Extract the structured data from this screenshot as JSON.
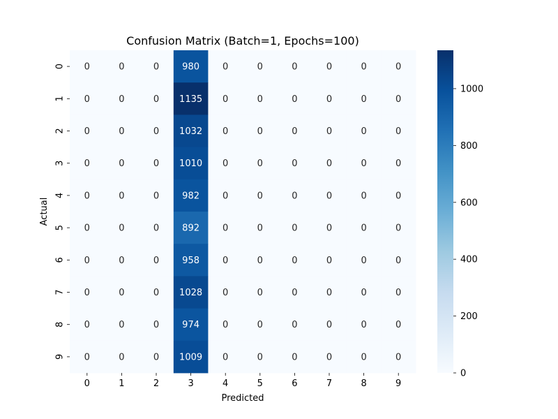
{
  "chart_data": {
    "type": "heatmap",
    "title": "Confusion Matrix (Batch=1, Epochs=100)",
    "xlabel": "Predicted",
    "ylabel": "Actual",
    "x_categories": [
      "0",
      "1",
      "2",
      "3",
      "4",
      "5",
      "6",
      "7",
      "8",
      "9"
    ],
    "y_categories": [
      "0",
      "1",
      "2",
      "3",
      "4",
      "5",
      "6",
      "7",
      "8",
      "9"
    ],
    "values": [
      [
        0,
        0,
        0,
        980,
        0,
        0,
        0,
        0,
        0,
        0
      ],
      [
        0,
        0,
        0,
        1135,
        0,
        0,
        0,
        0,
        0,
        0
      ],
      [
        0,
        0,
        0,
        1032,
        0,
        0,
        0,
        0,
        0,
        0
      ],
      [
        0,
        0,
        0,
        1010,
        0,
        0,
        0,
        0,
        0,
        0
      ],
      [
        0,
        0,
        0,
        982,
        0,
        0,
        0,
        0,
        0,
        0
      ],
      [
        0,
        0,
        0,
        892,
        0,
        0,
        0,
        0,
        0,
        0
      ],
      [
        0,
        0,
        0,
        958,
        0,
        0,
        0,
        0,
        0,
        0
      ],
      [
        0,
        0,
        0,
        1028,
        0,
        0,
        0,
        0,
        0,
        0
      ],
      [
        0,
        0,
        0,
        974,
        0,
        0,
        0,
        0,
        0,
        0
      ],
      [
        0,
        0,
        0,
        1009,
        0,
        0,
        0,
        0,
        0,
        0
      ]
    ],
    "colormap": "Blues",
    "colorbar": {
      "range": [
        0,
        1135
      ],
      "ticks": [
        0,
        200,
        400,
        600,
        800,
        1000
      ]
    },
    "annotations": true,
    "grid": false
  }
}
